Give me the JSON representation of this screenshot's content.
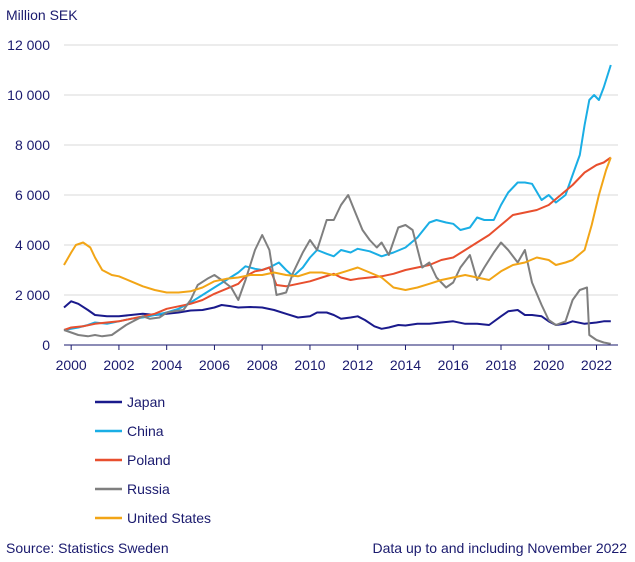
{
  "chart_data": {
    "type": "line",
    "title": "",
    "ylabel": "Million SEK",
    "xlabel": "",
    "ylim": [
      0,
      12000
    ],
    "xlim": [
      1999.7,
      2022.9
    ],
    "yticks": [
      0,
      2000,
      4000,
      6000,
      8000,
      10000,
      12000
    ],
    "ytick_labels": [
      "0",
      "2 000",
      "4 000",
      "6 000",
      "8 000",
      "10 000",
      "12 000"
    ],
    "xticks": [
      2000,
      2002,
      2004,
      2006,
      2008,
      2010,
      2012,
      2014,
      2016,
      2018,
      2020,
      2022
    ],
    "xtick_labels": [
      "2000",
      "2002",
      "2004",
      "2006",
      "2008",
      "2010",
      "2012",
      "2014",
      "2016",
      "2018",
      "2020",
      "2022"
    ],
    "legend_position": "bottom-left",
    "series": [
      {
        "name": "Japan",
        "color": "#1a1a8c",
        "points": [
          [
            1999.7,
            1500
          ],
          [
            2000.0,
            1750
          ],
          [
            2000.3,
            1650
          ],
          [
            2000.7,
            1400
          ],
          [
            2001.0,
            1200
          ],
          [
            2001.5,
            1150
          ],
          [
            2002.0,
            1150
          ],
          [
            2002.5,
            1200
          ],
          [
            2003.0,
            1250
          ],
          [
            2003.5,
            1200
          ],
          [
            2004.0,
            1250
          ],
          [
            2004.5,
            1300
          ],
          [
            2005.0,
            1380
          ],
          [
            2005.5,
            1400
          ],
          [
            2006.0,
            1500
          ],
          [
            2006.3,
            1600
          ],
          [
            2006.7,
            1550
          ],
          [
            2007.0,
            1500
          ],
          [
            2007.5,
            1520
          ],
          [
            2008.0,
            1500
          ],
          [
            2008.5,
            1400
          ],
          [
            2009.0,
            1250
          ],
          [
            2009.5,
            1100
          ],
          [
            2010.0,
            1150
          ],
          [
            2010.3,
            1300
          ],
          [
            2010.7,
            1300
          ],
          [
            2011.0,
            1200
          ],
          [
            2011.3,
            1050
          ],
          [
            2011.7,
            1100
          ],
          [
            2012.0,
            1150
          ],
          [
            2012.3,
            1000
          ],
          [
            2012.7,
            750
          ],
          [
            2013.0,
            650
          ],
          [
            2013.3,
            700
          ],
          [
            2013.7,
            800
          ],
          [
            2014.0,
            780
          ],
          [
            2014.5,
            850
          ],
          [
            2015.0,
            850
          ],
          [
            2015.5,
            900
          ],
          [
            2016.0,
            950
          ],
          [
            2016.5,
            850
          ],
          [
            2017.0,
            850
          ],
          [
            2017.5,
            800
          ],
          [
            2018.0,
            1150
          ],
          [
            2018.3,
            1350
          ],
          [
            2018.7,
            1400
          ],
          [
            2019.0,
            1200
          ],
          [
            2019.3,
            1200
          ],
          [
            2019.7,
            1150
          ],
          [
            2020.0,
            950
          ],
          [
            2020.3,
            800
          ],
          [
            2020.7,
            850
          ],
          [
            2021.0,
            950
          ],
          [
            2021.5,
            850
          ],
          [
            2022.0,
            900
          ],
          [
            2022.3,
            950
          ],
          [
            2022.6,
            950
          ]
        ]
      },
      {
        "name": "China",
        "color": "#1aaee5",
        "points": [
          [
            1999.7,
            600
          ],
          [
            2000.3,
            700
          ],
          [
            2000.7,
            800
          ],
          [
            2001.0,
            900
          ],
          [
            2001.5,
            850
          ],
          [
            2002.0,
            950
          ],
          [
            2002.5,
            1050
          ],
          [
            2003.0,
            1100
          ],
          [
            2003.5,
            1200
          ],
          [
            2004.0,
            1300
          ],
          [
            2004.5,
            1450
          ],
          [
            2005.0,
            1700
          ],
          [
            2005.5,
            2000
          ],
          [
            2006.0,
            2300
          ],
          [
            2006.5,
            2600
          ],
          [
            2007.0,
            2900
          ],
          [
            2007.3,
            3150
          ],
          [
            2007.7,
            3050
          ],
          [
            2008.0,
            3000
          ],
          [
            2008.3,
            3100
          ],
          [
            2008.7,
            3300
          ],
          [
            2009.0,
            3000
          ],
          [
            2009.3,
            2750
          ],
          [
            2009.7,
            3100
          ],
          [
            2010.0,
            3500
          ],
          [
            2010.3,
            3800
          ],
          [
            2010.7,
            3650
          ],
          [
            2011.0,
            3550
          ],
          [
            2011.3,
            3800
          ],
          [
            2011.7,
            3700
          ],
          [
            2012.0,
            3850
          ],
          [
            2012.5,
            3750
          ],
          [
            2013.0,
            3550
          ],
          [
            2013.5,
            3700
          ],
          [
            2014.0,
            3900
          ],
          [
            2014.5,
            4300
          ],
          [
            2015.0,
            4900
          ],
          [
            2015.3,
            5000
          ],
          [
            2015.7,
            4900
          ],
          [
            2016.0,
            4850
          ],
          [
            2016.3,
            4600
          ],
          [
            2016.7,
            4700
          ],
          [
            2017.0,
            5100
          ],
          [
            2017.3,
            5000
          ],
          [
            2017.7,
            5000
          ],
          [
            2018.0,
            5600
          ],
          [
            2018.3,
            6100
          ],
          [
            2018.7,
            6500
          ],
          [
            2019.0,
            6500
          ],
          [
            2019.3,
            6450
          ],
          [
            2019.7,
            5800
          ],
          [
            2020.0,
            6000
          ],
          [
            2020.3,
            5700
          ],
          [
            2020.7,
            6000
          ],
          [
            2021.0,
            6800
          ],
          [
            2021.3,
            7600
          ],
          [
            2021.5,
            8800
          ],
          [
            2021.7,
            9800
          ],
          [
            2021.9,
            10000
          ],
          [
            2022.1,
            9800
          ],
          [
            2022.3,
            10300
          ],
          [
            2022.6,
            11200
          ]
        ]
      },
      {
        "name": "Poland",
        "color": "#e84f2e",
        "points": [
          [
            1999.7,
            600
          ],
          [
            2000.0,
            700
          ],
          [
            2000.5,
            750
          ],
          [
            2001.0,
            850
          ],
          [
            2001.5,
            900
          ],
          [
            2002.0,
            950
          ],
          [
            2002.5,
            1050
          ],
          [
            2003.0,
            1150
          ],
          [
            2003.5,
            1250
          ],
          [
            2004.0,
            1450
          ],
          [
            2004.5,
            1550
          ],
          [
            2005.0,
            1650
          ],
          [
            2005.5,
            1800
          ],
          [
            2006.0,
            2050
          ],
          [
            2006.5,
            2250
          ],
          [
            2007.0,
            2450
          ],
          [
            2007.3,
            2750
          ],
          [
            2007.7,
            2950
          ],
          [
            2008.0,
            3000
          ],
          [
            2008.3,
            3100
          ],
          [
            2008.6,
            2400
          ],
          [
            2009.0,
            2350
          ],
          [
            2009.5,
            2450
          ],
          [
            2010.0,
            2550
          ],
          [
            2010.5,
            2700
          ],
          [
            2011.0,
            2850
          ],
          [
            2011.3,
            2700
          ],
          [
            2011.7,
            2600
          ],
          [
            2012.0,
            2650
          ],
          [
            2012.5,
            2700
          ],
          [
            2013.0,
            2750
          ],
          [
            2013.5,
            2850
          ],
          [
            2014.0,
            3000
          ],
          [
            2014.5,
            3100
          ],
          [
            2015.0,
            3200
          ],
          [
            2015.5,
            3400
          ],
          [
            2016.0,
            3500
          ],
          [
            2016.5,
            3800
          ],
          [
            2017.0,
            4100
          ],
          [
            2017.5,
            4400
          ],
          [
            2018.0,
            4800
          ],
          [
            2018.5,
            5200
          ],
          [
            2019.0,
            5300
          ],
          [
            2019.5,
            5400
          ],
          [
            2020.0,
            5600
          ],
          [
            2020.5,
            6000
          ],
          [
            2021.0,
            6400
          ],
          [
            2021.5,
            6900
          ],
          [
            2022.0,
            7200
          ],
          [
            2022.3,
            7300
          ],
          [
            2022.6,
            7500
          ]
        ]
      },
      {
        "name": "Russia",
        "color": "#7f7f7f",
        "points": [
          [
            1999.7,
            600
          ],
          [
            2000.0,
            500
          ],
          [
            2000.3,
            400
          ],
          [
            2000.7,
            350
          ],
          [
            2001.0,
            400
          ],
          [
            2001.3,
            350
          ],
          [
            2001.7,
            400
          ],
          [
            2002.0,
            600
          ],
          [
            2002.3,
            800
          ],
          [
            2002.7,
            1000
          ],
          [
            2003.0,
            1150
          ],
          [
            2003.3,
            1050
          ],
          [
            2003.7,
            1100
          ],
          [
            2004.0,
            1300
          ],
          [
            2004.3,
            1350
          ],
          [
            2004.7,
            1400
          ],
          [
            2005.0,
            1800
          ],
          [
            2005.3,
            2400
          ],
          [
            2005.7,
            2650
          ],
          [
            2006.0,
            2800
          ],
          [
            2006.3,
            2600
          ],
          [
            2006.7,
            2300
          ],
          [
            2007.0,
            1800
          ],
          [
            2007.3,
            2600
          ],
          [
            2007.7,
            3800
          ],
          [
            2008.0,
            4400
          ],
          [
            2008.3,
            3800
          ],
          [
            2008.6,
            2000
          ],
          [
            2009.0,
            2100
          ],
          [
            2009.3,
            2900
          ],
          [
            2009.7,
            3700
          ],
          [
            2010.0,
            4200
          ],
          [
            2010.3,
            3800
          ],
          [
            2010.7,
            5000
          ],
          [
            2011.0,
            5000
          ],
          [
            2011.3,
            5600
          ],
          [
            2011.6,
            6000
          ],
          [
            2011.9,
            5300
          ],
          [
            2012.2,
            4600
          ],
          [
            2012.5,
            4200
          ],
          [
            2012.8,
            3900
          ],
          [
            2013.0,
            4100
          ],
          [
            2013.3,
            3600
          ],
          [
            2013.7,
            4700
          ],
          [
            2014.0,
            4800
          ],
          [
            2014.3,
            4600
          ],
          [
            2014.7,
            3100
          ],
          [
            2015.0,
            3300
          ],
          [
            2015.3,
            2700
          ],
          [
            2015.7,
            2300
          ],
          [
            2016.0,
            2500
          ],
          [
            2016.3,
            3100
          ],
          [
            2016.7,
            3600
          ],
          [
            2017.0,
            2600
          ],
          [
            2017.3,
            3100
          ],
          [
            2017.7,
            3700
          ],
          [
            2018.0,
            4100
          ],
          [
            2018.3,
            3800
          ],
          [
            2018.7,
            3300
          ],
          [
            2019.0,
            3800
          ],
          [
            2019.3,
            2500
          ],
          [
            2019.7,
            1600
          ],
          [
            2020.0,
            1000
          ],
          [
            2020.3,
            800
          ],
          [
            2020.7,
            950
          ],
          [
            2021.0,
            1800
          ],
          [
            2021.3,
            2200
          ],
          [
            2021.6,
            2300
          ],
          [
            2021.7,
            400
          ],
          [
            2022.0,
            200
          ],
          [
            2022.3,
            100
          ],
          [
            2022.6,
            50
          ]
        ]
      },
      {
        "name": "United States",
        "color": "#f2a516",
        "points": [
          [
            1999.7,
            3200
          ],
          [
            2000.0,
            3700
          ],
          [
            2000.2,
            4000
          ],
          [
            2000.5,
            4100
          ],
          [
            2000.8,
            3900
          ],
          [
            2001.0,
            3500
          ],
          [
            2001.3,
            3000
          ],
          [
            2001.7,
            2800
          ],
          [
            2002.0,
            2750
          ],
          [
            2002.5,
            2550
          ],
          [
            2003.0,
            2350
          ],
          [
            2003.5,
            2200
          ],
          [
            2004.0,
            2100
          ],
          [
            2004.5,
            2100
          ],
          [
            2005.0,
            2150
          ],
          [
            2005.5,
            2300
          ],
          [
            2006.0,
            2550
          ],
          [
            2006.5,
            2650
          ],
          [
            2007.0,
            2700
          ],
          [
            2007.5,
            2800
          ],
          [
            2008.0,
            2800
          ],
          [
            2008.5,
            2900
          ],
          [
            2009.0,
            2800
          ],
          [
            2009.5,
            2750
          ],
          [
            2010.0,
            2900
          ],
          [
            2010.5,
            2900
          ],
          [
            2011.0,
            2800
          ],
          [
            2011.5,
            2950
          ],
          [
            2012.0,
            3100
          ],
          [
            2012.5,
            2900
          ],
          [
            2013.0,
            2700
          ],
          [
            2013.5,
            2300
          ],
          [
            2014.0,
            2200
          ],
          [
            2014.5,
            2300
          ],
          [
            2015.0,
            2450
          ],
          [
            2015.5,
            2600
          ],
          [
            2016.0,
            2700
          ],
          [
            2016.5,
            2800
          ],
          [
            2017.0,
            2700
          ],
          [
            2017.5,
            2600
          ],
          [
            2018.0,
            2950
          ],
          [
            2018.5,
            3200
          ],
          [
            2019.0,
            3300
          ],
          [
            2019.5,
            3500
          ],
          [
            2020.0,
            3400
          ],
          [
            2020.3,
            3200
          ],
          [
            2020.7,
            3300
          ],
          [
            2021.0,
            3400
          ],
          [
            2021.5,
            3800
          ],
          [
            2021.8,
            4800
          ],
          [
            2022.1,
            6000
          ],
          [
            2022.4,
            7000
          ],
          [
            2022.6,
            7500
          ]
        ]
      }
    ]
  },
  "footer": {
    "source": "Source:  Statistics Sweden",
    "note": "Data up to and including November 2022"
  }
}
